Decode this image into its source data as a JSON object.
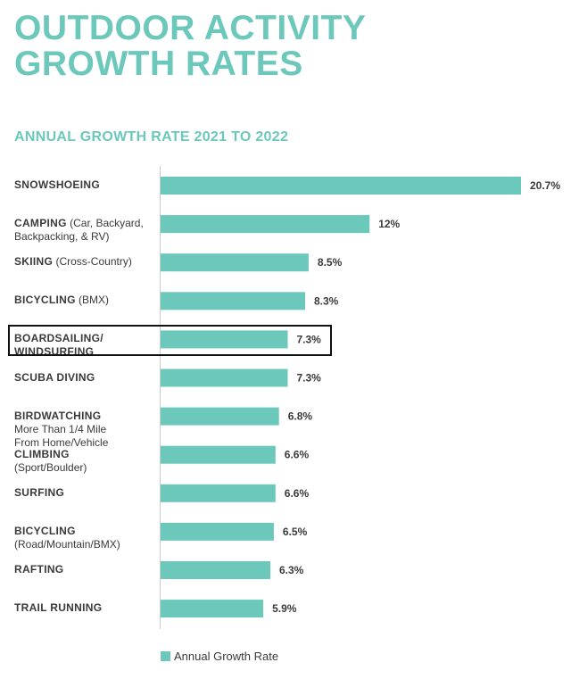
{
  "title": {
    "line1": "OUTDOOR ACTIVITY",
    "line2": "GROWTH RATES"
  },
  "subtitle": "ANNUAL GROWTH RATE 2021 TO 2022",
  "legend": {
    "label": "Annual Growth Rate"
  },
  "colors": {
    "bar": "#6cc8bb",
    "text": "#3a3a3a",
    "axis": "#cccccc",
    "highlight_border": "#111111"
  },
  "chart_data": {
    "type": "bar",
    "orientation": "horizontal",
    "title": "OUTDOOR ACTIVITY GROWTH RATES",
    "subtitle": "ANNUAL GROWTH RATE 2021 TO 2022",
    "xlim": [
      0,
      20.7
    ],
    "grid": false,
    "legend_position": "bottom",
    "highlighted_category": "BOARDSAILING/ WINDSURFING",
    "series": [
      {
        "name": "Annual Growth Rate"
      }
    ],
    "categories": [
      {
        "name_lines": [
          "SNOWSHOEING"
        ],
        "detail_lines": [],
        "value": 20.7,
        "value_label": "20.7%"
      },
      {
        "name_lines": [
          "CAMPING"
        ],
        "inline_detail": " (Car, Backyard,",
        "detail_lines": [
          "Backpacking, & RV)"
        ],
        "value": 12,
        "value_label": "12%"
      },
      {
        "name_lines": [
          "SKIING"
        ],
        "inline_detail": " (Cross-Country)",
        "detail_lines": [],
        "value": 8.5,
        "value_label": "8.5%"
      },
      {
        "name_lines": [
          "BICYCLING"
        ],
        "inline_detail": " (BMX)",
        "detail_lines": [],
        "value": 8.3,
        "value_label": "8.3%"
      },
      {
        "name_lines": [
          "BOARDSAILING/",
          "WINDSURFING"
        ],
        "detail_lines": [],
        "value": 7.3,
        "value_label": "7.3%"
      },
      {
        "name_lines": [
          "SCUBA DIVING"
        ],
        "detail_lines": [],
        "value": 7.3,
        "value_label": "7.3%"
      },
      {
        "name_lines": [
          "BIRDWATCHING"
        ],
        "detail_lines": [
          "More Than 1/4 Mile",
          "From Home/Vehicle"
        ],
        "value": 6.8,
        "value_label": "6.8%"
      },
      {
        "name_lines": [
          "CLIMBING"
        ],
        "detail_lines": [
          "(Sport/Boulder)"
        ],
        "value": 6.6,
        "value_label": "6.6%"
      },
      {
        "name_lines": [
          "SURFING"
        ],
        "detail_lines": [],
        "value": 6.6,
        "value_label": "6.6%"
      },
      {
        "name_lines": [
          "BICYCLING"
        ],
        "detail_lines": [
          "(Road/Mountain/BMX)"
        ],
        "value": 6.5,
        "value_label": "6.5%"
      },
      {
        "name_lines": [
          "RAFTING"
        ],
        "detail_lines": [],
        "value": 6.3,
        "value_label": "6.3%"
      },
      {
        "name_lines": [
          "TRAIL RUNNING"
        ],
        "detail_lines": [],
        "value": 5.9,
        "value_label": "5.9%"
      }
    ]
  }
}
